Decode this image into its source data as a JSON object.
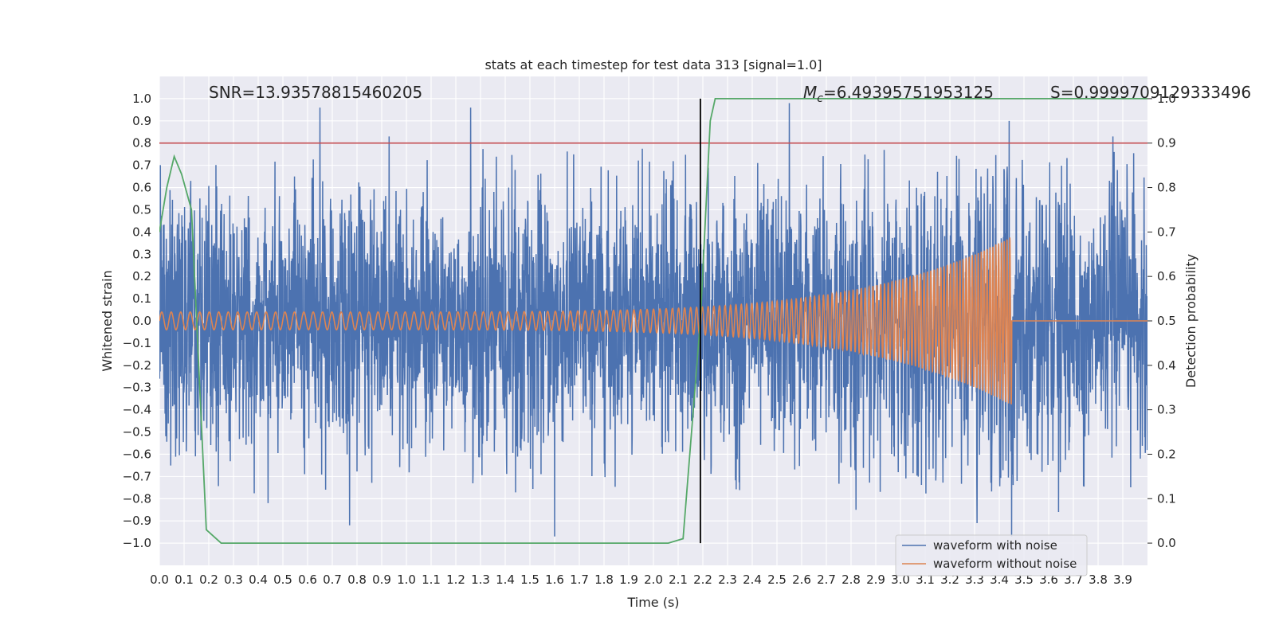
{
  "chart_data": {
    "type": "line",
    "title": "stats at each timestep for test data 313 [signal=1.0]",
    "xlabel": "Time (s)",
    "ylabel": "Whitened strain",
    "y2label": "Detection probability",
    "xlim": [
      0.0,
      4.0
    ],
    "ylim": [
      -1.1,
      1.1
    ],
    "y2lim": [
      -0.05,
      1.05
    ],
    "x_ticks": [
      "0.0",
      "0.1",
      "0.2",
      "0.3",
      "0.4",
      "0.5",
      "0.6",
      "0.7",
      "0.8",
      "0.9",
      "1.0",
      "1.1",
      "1.2",
      "1.3",
      "1.4",
      "1.5",
      "1.6",
      "1.7",
      "1.8",
      "1.9",
      "2.0",
      "2.1",
      "2.2",
      "2.3",
      "2.4",
      "2.5",
      "2.6",
      "2.7",
      "2.8",
      "2.9",
      "3.0",
      "3.1",
      "3.2",
      "3.3",
      "3.4",
      "3.5",
      "3.6",
      "3.7",
      "3.8",
      "3.9"
    ],
    "y_ticks": [
      "1.0",
      "0.9",
      "0.8",
      "0.7",
      "0.6",
      "0.5",
      "0.4",
      "0.3",
      "0.2",
      "0.1",
      "0.0",
      "−0.1",
      "−0.2",
      "−0.3",
      "−0.4",
      "−0.5",
      "−0.6",
      "−0.7",
      "−0.8",
      "−0.9",
      "−1.0"
    ],
    "y2_ticks": [
      "1.0",
      "0.9",
      "0.8",
      "0.7",
      "0.6",
      "0.5",
      "0.4",
      "0.3",
      "0.2",
      "0.1",
      "0.0"
    ],
    "grid": true,
    "legend_position": "lower-right",
    "annotations": {
      "snr": "SNR=13.93578815460205",
      "mc_symbol": "M",
      "mc_sub": "c",
      "mc_value": "=6.49395751953125",
      "s": "S=0.9999709129333496"
    },
    "threshold": {
      "value": 0.9,
      "axis": "y2",
      "color": "#c44e52"
    },
    "event_time": {
      "x": 2.19,
      "color": "#000000"
    },
    "series": [
      {
        "name": "waveform with noise",
        "color": "#4c72b0",
        "axis": "y",
        "kind": "noisy_strain",
        "std": 0.28,
        "peaks": [
          [
            0.65,
            0.96
          ],
          [
            0.93,
            0.83
          ],
          [
            1.26,
            0.96
          ],
          [
            2.55,
            0.98
          ],
          [
            3.44,
            0.9
          ],
          [
            3.86,
            0.83
          ],
          [
            3.45,
            -0.97
          ],
          [
            1.6,
            -0.97
          ],
          [
            0.77,
            -0.92
          ],
          [
            0.44,
            -0.82
          ],
          [
            3.31,
            -0.91
          ],
          [
            2.82,
            -0.85
          ],
          [
            3.64,
            -0.86
          ]
        ]
      },
      {
        "name": "waveform without noise",
        "color": "#dd8452",
        "axis": "y",
        "kind": "chirp",
        "merger_time": 3.45,
        "start_amplitude": 0.04,
        "end_amplitude": 0.38,
        "start_frequency_hz": 26,
        "end_frequency_hz": 90
      },
      {
        "name": "detection probability",
        "color": "#55a868",
        "axis": "y2",
        "x": [
          0.0,
          0.03,
          0.06,
          0.09,
          0.13,
          0.19,
          0.25,
          0.5,
          1.0,
          1.5,
          2.0,
          2.06,
          2.12,
          2.19,
          2.23,
          2.25,
          2.5,
          3.0,
          3.5,
          4.0
        ],
        "y": [
          0.7,
          0.8,
          0.87,
          0.83,
          0.75,
          0.03,
          0.0,
          0.0,
          0.0,
          0.0,
          0.0,
          0.0,
          0.01,
          0.5,
          0.95,
          1.0,
          1.0,
          1.0,
          1.0,
          1.0
        ]
      }
    ]
  }
}
